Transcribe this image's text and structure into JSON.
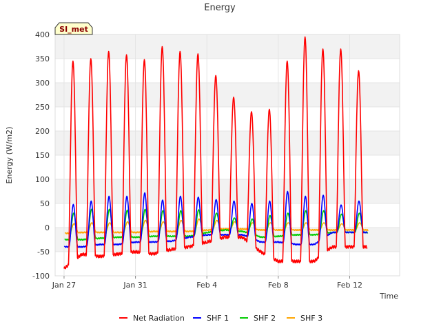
{
  "chart_data": {
    "type": "line",
    "title": "Energy",
    "xlabel": "Time",
    "ylabel": "Energy (W/m2)",
    "badge": "SI_met",
    "xlim": [
      -0.5,
      18.8
    ],
    "ylim": [
      -100,
      400
    ],
    "grid": true,
    "x_ticks": [
      {
        "value": 0,
        "label": "Jan 27"
      },
      {
        "value": 4,
        "label": "Jan 31"
      },
      {
        "value": 8,
        "label": "Feb 4"
      },
      {
        "value": 12,
        "label": "Feb 8"
      },
      {
        "value": 16,
        "label": "Feb 12"
      }
    ],
    "y_ticks": [
      -100,
      -50,
      0,
      50,
      100,
      150,
      200,
      250,
      300,
      350,
      400
    ],
    "legend_position": "bottom-center",
    "series": [
      {
        "name": "Net Radiation",
        "color": "#ff0000",
        "night": [
          -85,
          -55,
          -60,
          -55,
          -50,
          -55,
          -45,
          -40,
          -30,
          -20,
          -20,
          -50,
          -70,
          -70,
          -70,
          -40,
          -40
        ],
        "peaks": [
          345,
          350,
          365,
          358,
          348,
          375,
          365,
          360,
          315,
          270,
          240,
          245,
          345,
          395,
          370,
          370,
          325
        ]
      },
      {
        "name": "SHF 1",
        "color": "#0000ff",
        "night": [
          -40,
          -40,
          -35,
          -35,
          -30,
          -30,
          -28,
          -20,
          -15,
          -15,
          -15,
          -30,
          -30,
          -35,
          -35,
          -10,
          -10
        ],
        "peaks": [
          48,
          55,
          65,
          65,
          72,
          57,
          65,
          63,
          58,
          55,
          50,
          55,
          75,
          65,
          67,
          47,
          55
        ]
      },
      {
        "name": "SHF 2",
        "color": "#00cc00",
        "night": [
          -25,
          -25,
          -22,
          -20,
          -20,
          -18,
          -18,
          -18,
          -10,
          -5,
          -8,
          -20,
          -18,
          -15,
          -15,
          -10,
          -10
        ],
        "peaks": [
          30,
          38,
          38,
          36,
          38,
          35,
          35,
          37,
          30,
          20,
          18,
          25,
          30,
          35,
          35,
          28,
          30
        ]
      },
      {
        "name": "SHF 3",
        "color": "#ffa500",
        "night": [
          -12,
          -10,
          -10,
          -10,
          -10,
          -8,
          -8,
          -8,
          -5,
          -3,
          -3,
          -5,
          -5,
          -5,
          -5,
          -5,
          -5
        ],
        "peaks": [
          8,
          10,
          10,
          12,
          15,
          12,
          15,
          18,
          15,
          12,
          10,
          10,
          10,
          10,
          10,
          8,
          10
        ]
      }
    ]
  }
}
